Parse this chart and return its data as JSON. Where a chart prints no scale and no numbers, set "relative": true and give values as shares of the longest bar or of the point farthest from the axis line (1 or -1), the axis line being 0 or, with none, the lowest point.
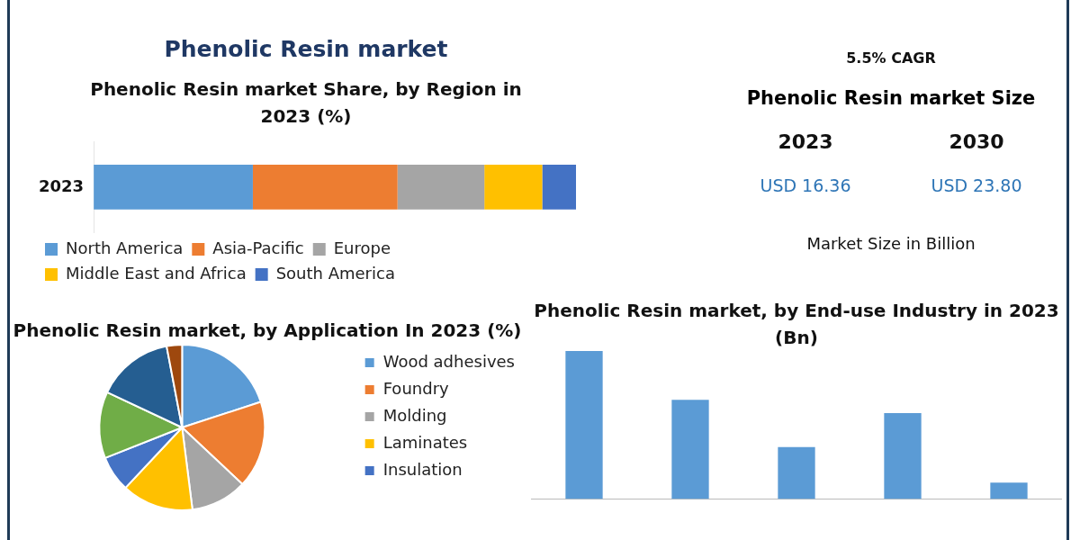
{
  "chart_data": [
    {
      "type": "bar",
      "title": "Phenolic Resin market",
      "subtitle": "Phenolic Resin market Share, by Region in 2023 (%)",
      "orientation": "horizontal",
      "stacked": true,
      "relative": true,
      "legend": "bottom",
      "categories": [
        "2023"
      ],
      "series": [
        {
          "name": "North America",
          "color": "#5b9bd5",
          "values": [
            0.33
          ]
        },
        {
          "name": "Asia-Pacific",
          "color": "#ed7d31",
          "values": [
            0.3
          ]
        },
        {
          "name": "Europe",
          "color": "#a5a5a5",
          "values": [
            0.18
          ]
        },
        {
          "name": "Middle East and Africa",
          "color": "#ffc000",
          "values": [
            0.12
          ]
        },
        {
          "name": "South America",
          "color": "#4472c4",
          "values": [
            0.07
          ]
        }
      ]
    },
    {
      "type": "pie",
      "title": "Phenolic Resin market, by Application In 2023 (%)",
      "legend": "right",
      "categories": [
        "Wood adhesives",
        "Foundry",
        "Molding",
        "Laminates",
        "Insulation",
        null,
        null,
        null
      ],
      "values": [
        20,
        17,
        11,
        14,
        7,
        13,
        15,
        3
      ],
      "colors": [
        "#5b9bd5",
        "#ed7d31",
        "#a5a5a5",
        "#ffc000",
        "#4472c4",
        "#70ad47",
        "#255e91",
        "#9e480e"
      ]
    },
    {
      "type": "bar",
      "title": "Phenolic Resin market, by End-use Industry in 2023 (Bn)",
      "relative": true,
      "categories": [
        null,
        null,
        null,
        null,
        null
      ],
      "series": [
        {
          "color": "#5b9bd5",
          "values": [
            1,
            0.67,
            0.35,
            0.58,
            0.11
          ]
        }
      ]
    },
    {
      "type": "other",
      "title": "Phenolic Resin market Size",
      "annotations": [
        "5.5% CAGR",
        "2023",
        "2030",
        "USD 16.36",
        "USD 23.80",
        "Market Size in Billion"
      ]
    }
  ]
}
